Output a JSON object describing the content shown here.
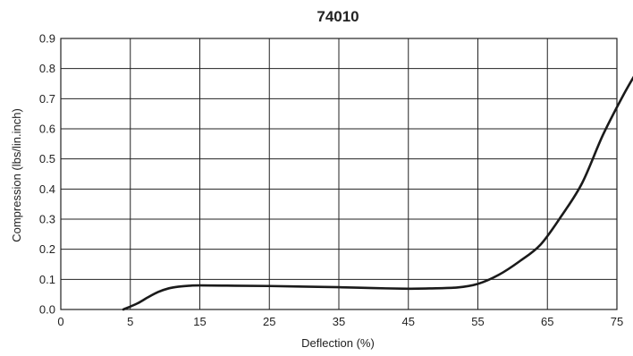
{
  "chart_data": {
    "type": "line",
    "title": "74010",
    "xlabel": "Deflection (%)",
    "ylabel": "Compression (lbs/lin.inch)",
    "x_ticks": [
      0,
      5,
      15,
      25,
      35,
      45,
      55,
      65,
      75
    ],
    "x_tick_labels": [
      "0",
      "5",
      "15",
      "25",
      "35",
      "45",
      "55",
      "65",
      "75"
    ],
    "y_ticks": [
      0,
      0.1,
      0.2,
      0.3,
      0.4,
      0.5,
      0.6,
      0.7,
      0.8,
      0.9
    ],
    "y_tick_labels": [
      "0.0",
      "0.1",
      "0.2",
      "0.3",
      "0.4",
      "0.5",
      "0.6",
      "0.7",
      "0.8",
      "0.9"
    ],
    "xlim": [
      0,
      75
    ],
    "ylim": [
      0,
      0.9
    ],
    "grid": true,
    "series": [
      {
        "color": "#1a1a1a",
        "points": [
          [
            4.5,
            0.0
          ],
          [
            6,
            0.02
          ],
          [
            7.5,
            0.04
          ],
          [
            9,
            0.058
          ],
          [
            10.5,
            0.07
          ],
          [
            12,
            0.076
          ],
          [
            13.5,
            0.079
          ],
          [
            15,
            0.08
          ],
          [
            20,
            0.079
          ],
          [
            25,
            0.078
          ],
          [
            30,
            0.076
          ],
          [
            35,
            0.074
          ],
          [
            40,
            0.071
          ],
          [
            45,
            0.069
          ],
          [
            48,
            0.07
          ],
          [
            52,
            0.073
          ],
          [
            55,
            0.085
          ],
          [
            58,
            0.115
          ],
          [
            61,
            0.16
          ],
          [
            64,
            0.215
          ],
          [
            67,
            0.31
          ],
          [
            70,
            0.42
          ],
          [
            73,
            0.58
          ],
          [
            76,
            0.715
          ],
          [
            78,
            0.795
          ]
        ]
      }
    ]
  }
}
